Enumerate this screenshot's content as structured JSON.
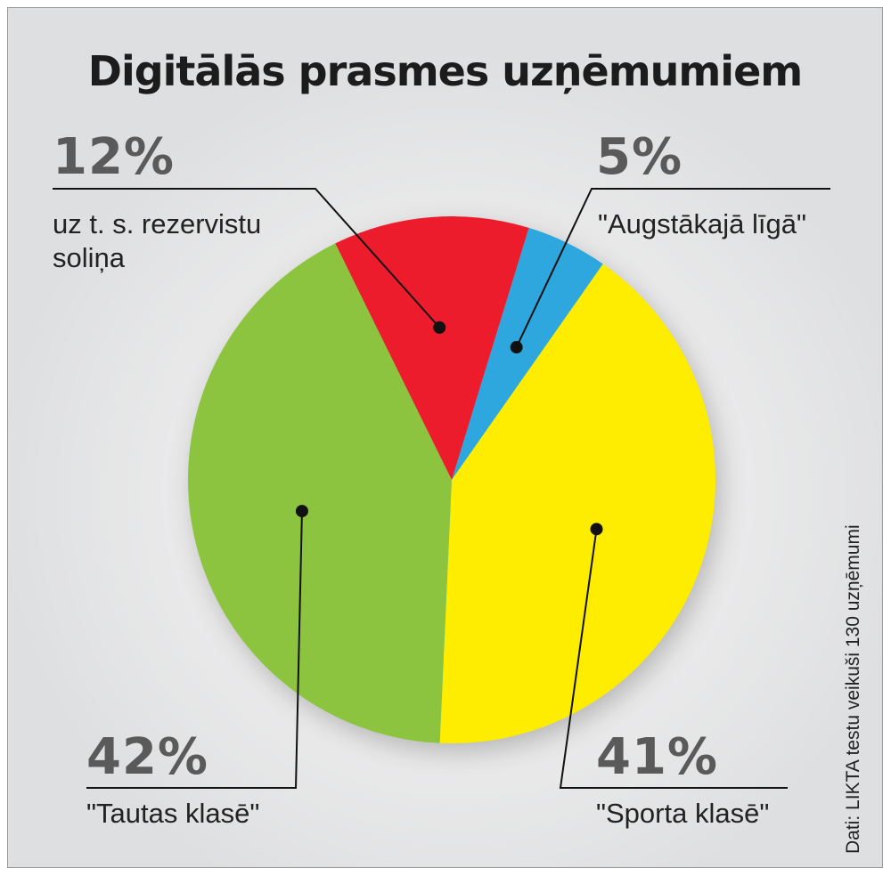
{
  "title": "Digitālās prasmes uzņēmumiem",
  "source": "Dati: LIKTA testu veikuši 130 uzņēmumi",
  "chart_data": {
    "type": "pie",
    "title": "Digitālās prasmes uzņēmumiem",
    "slices": [
      {
        "percent_label": "5%",
        "value": 5,
        "label": "\"Augstākajā līgā\"",
        "color": "#2ea6de"
      },
      {
        "percent_label": "41%",
        "value": 41,
        "label": "\"Sporta klasē\"",
        "color": "#ffed00"
      },
      {
        "percent_label": "42%",
        "value": 42,
        "label": "\"Tautas klasē\"",
        "color": "#8cc43f"
      },
      {
        "percent_label": "12%",
        "value": 12,
        "label": "uz t. s. rezervistu soliņa",
        "color": "#ec1c2c"
      }
    ]
  }
}
